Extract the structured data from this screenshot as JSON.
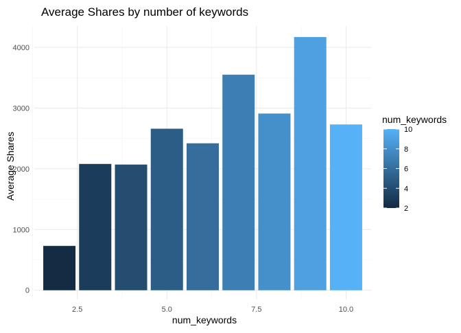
{
  "chart_data": {
    "type": "bar",
    "title": "Average Shares by number of keywords",
    "xlabel": "num_keywords",
    "ylabel": "Average Shares",
    "x": [
      2,
      3,
      4,
      5,
      6,
      7,
      8,
      9,
      10
    ],
    "values": [
      730,
      2080,
      2070,
      2660,
      2420,
      3550,
      2910,
      4170,
      2730
    ],
    "xlim": [
      1.3,
      10.7
    ],
    "ylim": [
      -150,
      4350
    ],
    "x_ticks": [
      2.5,
      5.0,
      7.5,
      10.0
    ],
    "x_tick_labels": [
      "2.5",
      "5.0",
      "7.5",
      "10.0"
    ],
    "y_ticks": [
      0,
      1000,
      2000,
      3000,
      4000
    ],
    "y_tick_labels": [
      "0",
      "1000",
      "2000",
      "3000",
      "4000"
    ],
    "grid": true,
    "legend": {
      "title": "num_keywords",
      "position": "right",
      "type": "colorbar",
      "range": [
        2,
        10
      ],
      "ticks": [
        2,
        4,
        6,
        8,
        10
      ],
      "tick_labels": [
        "2",
        "4",
        "6",
        "8",
        "10"
      ],
      "color_low": "#132B43",
      "color_high": "#56B1F7"
    }
  }
}
